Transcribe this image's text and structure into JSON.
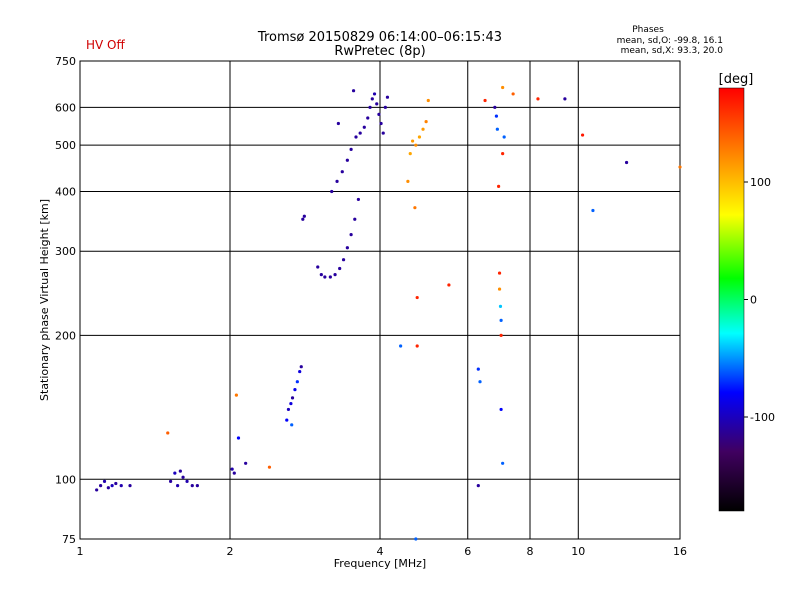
{
  "header": {
    "title_line1": "Tromsø 20150829 06:14:00–06:15:43",
    "title_line2": "RwPretec (8p)",
    "status": "HV Off",
    "status_color": "#d00000",
    "stats_title": "Phases",
    "stats_o": "mean, sd,O: -99.8, 16.1",
    "stats_x": "mean, sd,X:  93.3, 20.0"
  },
  "chart_data": {
    "type": "scatter",
    "title": "Tromsø 20150829 06:14:00–06:15:43",
    "subtitle": "RwPretec (8p)",
    "xlabel": "Frequency [MHz]",
    "ylabel": "Stationary phase Virtual Height [km]",
    "x_scale": "log",
    "y_scale": "log",
    "xlim": [
      1,
      16
    ],
    "ylim": [
      75,
      750
    ],
    "xticks": [
      "1",
      "2",
      "4",
      "6",
      "8",
      "10",
      "16"
    ],
    "yticks": [
      "75",
      "100",
      "200",
      "300",
      "400",
      "500",
      "600",
      "750"
    ],
    "grid": true,
    "colorbar": {
      "label": "[deg]",
      "range": [
        -180,
        180
      ],
      "ticks": [
        "100",
        "0",
        "-100"
      ]
    },
    "points": [
      {
        "x": 1.08,
        "y": 95,
        "phase": -110
      },
      {
        "x": 1.1,
        "y": 97,
        "phase": -110
      },
      {
        "x": 1.12,
        "y": 99,
        "phase": -105
      },
      {
        "x": 1.14,
        "y": 96,
        "phase": -110
      },
      {
        "x": 1.16,
        "y": 97,
        "phase": -100
      },
      {
        "x": 1.18,
        "y": 98,
        "phase": -110
      },
      {
        "x": 1.21,
        "y": 97,
        "phase": -105
      },
      {
        "x": 1.26,
        "y": 97,
        "phase": -110
      },
      {
        "x": 1.52,
        "y": 99,
        "phase": -110
      },
      {
        "x": 1.55,
        "y": 103,
        "phase": -100
      },
      {
        "x": 1.57,
        "y": 97,
        "phase": -105
      },
      {
        "x": 1.59,
        "y": 104,
        "phase": -110
      },
      {
        "x": 1.61,
        "y": 101,
        "phase": -110
      },
      {
        "x": 1.64,
        "y": 99,
        "phase": -105
      },
      {
        "x": 1.68,
        "y": 97,
        "phase": -110
      },
      {
        "x": 1.72,
        "y": 97,
        "phase": -110
      },
      {
        "x": 1.5,
        "y": 125,
        "phase": 140
      },
      {
        "x": 2.02,
        "y": 105,
        "phase": -105
      },
      {
        "x": 2.04,
        "y": 103,
        "phase": -110
      },
      {
        "x": 2.06,
        "y": 150,
        "phase": 130
      },
      {
        "x": 2.08,
        "y": 122,
        "phase": -80
      },
      {
        "x": 2.15,
        "y": 108,
        "phase": -110
      },
      {
        "x": 2.4,
        "y": 106,
        "phase": 140
      },
      {
        "x": 2.6,
        "y": 133,
        "phase": -80
      },
      {
        "x": 2.62,
        "y": 140,
        "phase": -100
      },
      {
        "x": 2.65,
        "y": 144,
        "phase": -90
      },
      {
        "x": 2.67,
        "y": 148,
        "phase": -110
      },
      {
        "x": 2.7,
        "y": 154,
        "phase": -85
      },
      {
        "x": 2.73,
        "y": 160,
        "phase": -70
      },
      {
        "x": 2.76,
        "y": 168,
        "phase": -90
      },
      {
        "x": 2.78,
        "y": 172,
        "phase": -110
      },
      {
        "x": 2.66,
        "y": 130,
        "phase": -60
      },
      {
        "x": 2.8,
        "y": 350,
        "phase": -110
      },
      {
        "x": 2.82,
        "y": 355,
        "phase": -110
      },
      {
        "x": 3.0,
        "y": 278,
        "phase": -110
      },
      {
        "x": 3.05,
        "y": 268,
        "phase": -110
      },
      {
        "x": 3.1,
        "y": 265,
        "phase": -110
      },
      {
        "x": 3.18,
        "y": 265,
        "phase": -110
      },
      {
        "x": 3.25,
        "y": 268,
        "phase": -110
      },
      {
        "x": 3.32,
        "y": 276,
        "phase": -110
      },
      {
        "x": 3.38,
        "y": 288,
        "phase": -110
      },
      {
        "x": 3.44,
        "y": 305,
        "phase": -110
      },
      {
        "x": 3.5,
        "y": 325,
        "phase": -110
      },
      {
        "x": 3.56,
        "y": 350,
        "phase": -110
      },
      {
        "x": 3.62,
        "y": 385,
        "phase": -110
      },
      {
        "x": 3.2,
        "y": 400,
        "phase": -110
      },
      {
        "x": 3.28,
        "y": 420,
        "phase": -110
      },
      {
        "x": 3.36,
        "y": 440,
        "phase": -110
      },
      {
        "x": 3.44,
        "y": 465,
        "phase": -110
      },
      {
        "x": 3.5,
        "y": 490,
        "phase": -110
      },
      {
        "x": 3.3,
        "y": 555,
        "phase": -110
      },
      {
        "x": 3.58,
        "y": 520,
        "phase": -110
      },
      {
        "x": 3.65,
        "y": 530,
        "phase": -110
      },
      {
        "x": 3.72,
        "y": 545,
        "phase": -110
      },
      {
        "x": 3.78,
        "y": 570,
        "phase": -110
      },
      {
        "x": 3.82,
        "y": 600,
        "phase": -110
      },
      {
        "x": 3.86,
        "y": 625,
        "phase": -110
      },
      {
        "x": 3.9,
        "y": 640,
        "phase": -105
      },
      {
        "x": 3.94,
        "y": 610,
        "phase": -110
      },
      {
        "x": 3.98,
        "y": 580,
        "phase": -110
      },
      {
        "x": 4.02,
        "y": 555,
        "phase": -110
      },
      {
        "x": 4.06,
        "y": 530,
        "phase": -110
      },
      {
        "x": 4.1,
        "y": 600,
        "phase": -110
      },
      {
        "x": 4.14,
        "y": 630,
        "phase": -110
      },
      {
        "x": 3.54,
        "y": 650,
        "phase": -110
      },
      {
        "x": 4.55,
        "y": 420,
        "phase": 120
      },
      {
        "x": 4.6,
        "y": 480,
        "phase": 110
      },
      {
        "x": 4.65,
        "y": 510,
        "phase": 115
      },
      {
        "x": 4.72,
        "y": 500,
        "phase": 120
      },
      {
        "x": 4.8,
        "y": 520,
        "phase": 110
      },
      {
        "x": 4.88,
        "y": 540,
        "phase": 115
      },
      {
        "x": 4.95,
        "y": 560,
        "phase": 125
      },
      {
        "x": 5.0,
        "y": 620,
        "phase": 120
      },
      {
        "x": 4.7,
        "y": 370,
        "phase": 130
      },
      {
        "x": 4.4,
        "y": 190,
        "phase": -60
      },
      {
        "x": 4.75,
        "y": 240,
        "phase": 165
      },
      {
        "x": 4.75,
        "y": 190,
        "phase": 165
      },
      {
        "x": 4.72,
        "y": 75,
        "phase": -60
      },
      {
        "x": 5.5,
        "y": 255,
        "phase": 165
      },
      {
        "x": 6.3,
        "y": 170,
        "phase": -70
      },
      {
        "x": 6.35,
        "y": 160,
        "phase": -60
      },
      {
        "x": 6.3,
        "y": 97,
        "phase": -110
      },
      {
        "x": 6.5,
        "y": 620,
        "phase": 165
      },
      {
        "x": 6.8,
        "y": 600,
        "phase": -110
      },
      {
        "x": 6.85,
        "y": 575,
        "phase": -70
      },
      {
        "x": 6.88,
        "y": 540,
        "phase": -60
      },
      {
        "x": 6.92,
        "y": 410,
        "phase": 165
      },
      {
        "x": 6.95,
        "y": 270,
        "phase": 165
      },
      {
        "x": 6.95,
        "y": 250,
        "phase": 120
      },
      {
        "x": 6.98,
        "y": 230,
        "phase": -40
      },
      {
        "x": 7.0,
        "y": 215,
        "phase": -60
      },
      {
        "x": 7.0,
        "y": 200,
        "phase": 165
      },
      {
        "x": 7.0,
        "y": 140,
        "phase": -80
      },
      {
        "x": 7.05,
        "y": 108,
        "phase": -60
      },
      {
        "x": 7.05,
        "y": 480,
        "phase": 165
      },
      {
        "x": 7.05,
        "y": 660,
        "phase": 120
      },
      {
        "x": 7.1,
        "y": 520,
        "phase": -60
      },
      {
        "x": 7.4,
        "y": 640,
        "phase": 140
      },
      {
        "x": 8.3,
        "y": 625,
        "phase": 165
      },
      {
        "x": 9.4,
        "y": 625,
        "phase": -110
      },
      {
        "x": 10.2,
        "y": 525,
        "phase": 170
      },
      {
        "x": 10.7,
        "y": 365,
        "phase": -60
      },
      {
        "x": 12.5,
        "y": 460,
        "phase": -110
      },
      {
        "x": 16.0,
        "y": 450,
        "phase": 130
      }
    ]
  }
}
